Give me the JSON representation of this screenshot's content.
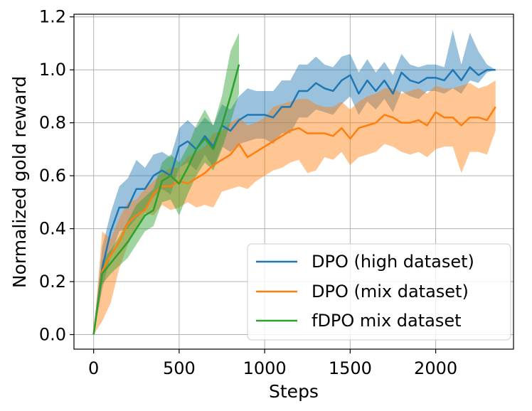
{
  "chart_data": {
    "type": "line",
    "title": "",
    "xlabel": "Steps",
    "ylabel": "Normalized gold reward",
    "xlim": [
      -115,
      2455
    ],
    "ylim": [
      -0.055,
      1.21
    ],
    "xticks": [
      0,
      500,
      1000,
      1500,
      2000
    ],
    "xtick_labels": [
      "0",
      "500",
      "1000",
      "1500",
      "2000"
    ],
    "yticks": [
      0.0,
      0.2,
      0.4,
      0.6,
      0.8,
      1.0,
      1.2
    ],
    "ytick_labels": [
      "0.0",
      "0.2",
      "0.4",
      "0.6",
      "0.8",
      "1.0",
      "1.2"
    ],
    "grid": true,
    "legend_position": "lower-right",
    "series": [
      {
        "name": "DPO (high dataset)",
        "color": "#1f77b4",
        "x": [
          0,
          50,
          100,
          150,
          200,
          250,
          300,
          350,
          400,
          450,
          500,
          550,
          600,
          650,
          700,
          750,
          800,
          850,
          900,
          950,
          1000,
          1050,
          1100,
          1150,
          1200,
          1250,
          1300,
          1350,
          1400,
          1450,
          1500,
          1550,
          1600,
          1650,
          1700,
          1750,
          1800,
          1850,
          1900,
          1950,
          2000,
          2050,
          2100,
          2150,
          2200,
          2250,
          2300,
          2350
        ],
        "y": [
          0.0,
          0.25,
          0.39,
          0.48,
          0.48,
          0.55,
          0.55,
          0.6,
          0.62,
          0.6,
          0.71,
          0.73,
          0.7,
          0.75,
          0.71,
          0.79,
          0.77,
          0.81,
          0.83,
          0.83,
          0.83,
          0.82,
          0.86,
          0.86,
          0.92,
          0.92,
          0.95,
          0.93,
          0.92,
          0.96,
          0.98,
          0.91,
          0.96,
          0.92,
          0.96,
          0.91,
          0.99,
          0.96,
          0.95,
          0.97,
          0.97,
          0.96,
          1.0,
          0.96,
          1.01,
          0.98,
          1.0,
          1.0
        ],
        "lower": [
          0.0,
          0.17,
          0.3,
          0.39,
          0.4,
          0.44,
          0.47,
          0.52,
          0.55,
          0.53,
          0.63,
          0.65,
          0.62,
          0.68,
          0.63,
          0.71,
          0.69,
          0.72,
          0.73,
          0.74,
          0.74,
          0.72,
          0.76,
          0.76,
          0.82,
          0.82,
          0.85,
          0.84,
          0.83,
          0.87,
          0.9,
          0.83,
          0.88,
          0.85,
          0.89,
          0.84,
          0.92,
          0.9,
          0.89,
          0.92,
          0.92,
          0.91,
          0.93,
          0.91,
          0.96,
          0.95,
          0.99,
          1.0
        ],
        "upper": [
          0.0,
          0.33,
          0.46,
          0.56,
          0.59,
          0.66,
          0.63,
          0.68,
          0.69,
          0.67,
          0.78,
          0.81,
          0.78,
          0.82,
          0.79,
          0.87,
          0.85,
          0.9,
          0.93,
          0.92,
          0.92,
          0.92,
          0.96,
          0.96,
          1.02,
          1.02,
          1.05,
          1.02,
          1.01,
          1.05,
          1.06,
          0.99,
          1.04,
          0.99,
          1.03,
          0.98,
          1.06,
          1.02,
          1.01,
          1.02,
          1.02,
          1.01,
          1.15,
          1.02,
          1.14,
          1.07,
          1.02,
          1.0
        ]
      },
      {
        "name": "DPO (mix dataset)",
        "color": "#ff7f0e",
        "x": [
          0,
          50,
          100,
          150,
          200,
          250,
          300,
          350,
          400,
          450,
          500,
          550,
          600,
          650,
          700,
          750,
          800,
          850,
          900,
          950,
          1000,
          1050,
          1100,
          1150,
          1200,
          1250,
          1300,
          1350,
          1400,
          1450,
          1500,
          1550,
          1600,
          1650,
          1700,
          1750,
          1800,
          1850,
          1900,
          1950,
          2000,
          2050,
          2100,
          2150,
          2200,
          2250,
          2300,
          2350
        ],
        "y": [
          0.0,
          0.24,
          0.3,
          0.35,
          0.42,
          0.45,
          0.47,
          0.53,
          0.56,
          0.56,
          0.58,
          0.57,
          0.59,
          0.61,
          0.64,
          0.66,
          0.68,
          0.72,
          0.67,
          0.69,
          0.71,
          0.73,
          0.75,
          0.77,
          0.78,
          0.76,
          0.76,
          0.76,
          0.75,
          0.78,
          0.74,
          0.78,
          0.79,
          0.8,
          0.83,
          0.82,
          0.8,
          0.8,
          0.81,
          0.79,
          0.84,
          0.82,
          0.82,
          0.79,
          0.82,
          0.82,
          0.81,
          0.86
        ],
        "lower": [
          0.0,
          0.05,
          0.12,
          0.25,
          0.34,
          0.4,
          0.46,
          0.45,
          0.49,
          0.47,
          0.48,
          0.5,
          0.48,
          0.49,
          0.48,
          0.54,
          0.55,
          0.56,
          0.55,
          0.58,
          0.6,
          0.62,
          0.63,
          0.65,
          0.66,
          0.61,
          0.62,
          0.67,
          0.66,
          0.69,
          0.64,
          0.67,
          0.68,
          0.69,
          0.72,
          0.71,
          0.69,
          0.68,
          0.69,
          0.67,
          0.7,
          0.71,
          0.71,
          0.61,
          0.69,
          0.69,
          0.68,
          0.77
        ],
        "upper": [
          0.0,
          0.39,
          0.36,
          0.44,
          0.5,
          0.51,
          0.55,
          0.58,
          0.61,
          0.63,
          0.63,
          0.67,
          0.69,
          0.71,
          0.76,
          0.77,
          0.8,
          0.82,
          0.79,
          0.8,
          0.82,
          0.86,
          0.87,
          0.88,
          0.89,
          0.89,
          0.87,
          0.86,
          0.86,
          0.88,
          0.85,
          0.88,
          0.9,
          0.91,
          0.93,
          0.93,
          0.91,
          0.92,
          0.93,
          0.91,
          0.94,
          0.93,
          0.93,
          0.94,
          0.95,
          0.93,
          0.94,
          0.96
        ]
      },
      {
        "name": "fDPO mix dataset",
        "color": "#2ca02c",
        "x": [
          0,
          50,
          100,
          150,
          200,
          250,
          300,
          350,
          400,
          450,
          500,
          550,
          600,
          650,
          700,
          750,
          800,
          850
        ],
        "y": [
          0.0,
          0.23,
          0.27,
          0.31,
          0.35,
          0.4,
          0.45,
          0.47,
          0.58,
          0.6,
          0.57,
          0.63,
          0.7,
          0.74,
          0.7,
          0.79,
          0.9,
          1.02
        ],
        "lower": [
          0.0,
          0.19,
          0.23,
          0.26,
          0.29,
          0.34,
          0.39,
          0.41,
          0.5,
          0.51,
          0.45,
          0.53,
          0.6,
          0.65,
          0.62,
          0.7,
          0.8,
          0.91
        ],
        "upper": [
          0.0,
          0.28,
          0.32,
          0.37,
          0.43,
          0.49,
          0.52,
          0.55,
          0.65,
          0.68,
          0.65,
          0.71,
          0.79,
          0.85,
          0.79,
          0.9,
          1.07,
          1.14
        ]
      }
    ]
  }
}
